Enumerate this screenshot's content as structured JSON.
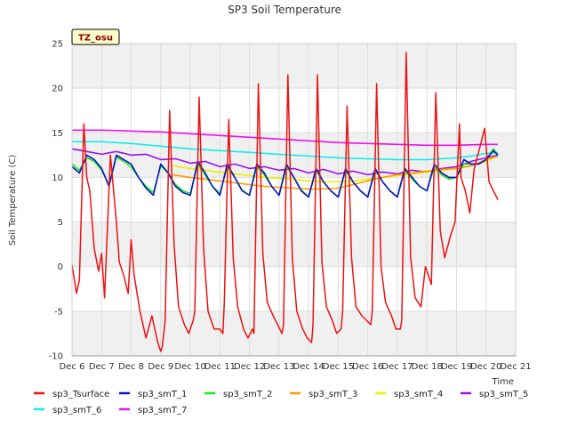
{
  "chart_data": {
    "type": "line",
    "title": "SP3 Soil Temperature",
    "xlabel": "Time",
    "ylabel": "Soil Temperature (C)",
    "site_badge": "TZ_osu",
    "ylim": [
      -10,
      25
    ],
    "xlim": [
      6,
      21
    ],
    "y_ticks": [
      "-10",
      "-5",
      "0",
      "5",
      "10",
      "15",
      "20",
      "25"
    ],
    "x_ticks": [
      {
        "label": "Dec 6",
        "x": 6
      },
      {
        "label": "Dec 7",
        "x": 7
      },
      {
        "label": "Dec 8",
        "x": 8
      },
      {
        "label": "Dec 9",
        "x": 9
      },
      {
        "label": "Dec 10",
        "x": 10
      },
      {
        "label": "Dec 11",
        "x": 11
      },
      {
        "label": "Dec 12",
        "x": 12
      },
      {
        "label": "Dec 13",
        "x": 13
      },
      {
        "label": "Dec 14",
        "x": 14
      },
      {
        "label": "Dec 15",
        "x": 15
      },
      {
        "label": "Dec 16",
        "x": 16
      },
      {
        "label": "Dec 17",
        "x": 17
      },
      {
        "label": "Dec 18",
        "x": 18
      },
      {
        "label": "Dec 19",
        "x": 19
      },
      {
        "label": "Dec 20",
        "x": 20
      },
      {
        "label": "Dec 21",
        "x": 21
      }
    ],
    "grid": true,
    "legend_position": "bottom",
    "series": [
      {
        "name": "sp3_Tsurface",
        "color": "#ee1111",
        "x": [
          6.0,
          6.15,
          6.25,
          6.4,
          6.5,
          6.6,
          6.75,
          6.9,
          7.0,
          7.1,
          7.3,
          7.5,
          7.6,
          7.75,
          7.9,
          8.0,
          8.1,
          8.3,
          8.5,
          8.7,
          8.9,
          9.0,
          9.05,
          9.15,
          9.3,
          9.45,
          9.6,
          9.8,
          9.95,
          10.1,
          10.15,
          10.3,
          10.45,
          10.6,
          10.8,
          11.0,
          11.1,
          11.15,
          11.3,
          11.45,
          11.6,
          11.8,
          11.95,
          12.1,
          12.15,
          12.3,
          12.45,
          12.6,
          12.8,
          12.95,
          13.1,
          13.15,
          13.3,
          13.45,
          13.6,
          13.8,
          13.95,
          14.1,
          14.15,
          14.3,
          14.45,
          14.6,
          14.8,
          14.95,
          15.1,
          15.15,
          15.3,
          15.45,
          15.6,
          15.8,
          15.95,
          16.1,
          16.15,
          16.3,
          16.45,
          16.6,
          16.8,
          16.95,
          17.1,
          17.15,
          17.3,
          17.45,
          17.6,
          17.8,
          17.95,
          18.1,
          18.15,
          18.3,
          18.45,
          18.6,
          18.8,
          18.95,
          19.1,
          19.15,
          19.3,
          19.45,
          19.6,
          19.8,
          19.95,
          20.1,
          20.25,
          20.4
        ],
        "y": [
          0.2,
          -3.0,
          -1.5,
          16.0,
          10.0,
          8.5,
          2.0,
          -0.5,
          1.5,
          -3.5,
          12.5,
          5.0,
          0.5,
          -1.0,
          -3.0,
          3.0,
          -1.0,
          -5.0,
          -8.0,
          -5.5,
          -8.5,
          -9.5,
          -9.0,
          -6.0,
          17.5,
          2.5,
          -4.5,
          -6.5,
          -7.5,
          -6.0,
          -5.0,
          19.0,
          2.0,
          -5.0,
          -7.0,
          -7.0,
          -7.5,
          -4.0,
          16.5,
          1.0,
          -4.5,
          -7.0,
          -8.0,
          -7.0,
          -7.5,
          20.5,
          1.5,
          -4.0,
          -5.5,
          -6.5,
          -7.5,
          -6.5,
          21.5,
          1.0,
          -5.0,
          -7.0,
          -8.0,
          -8.5,
          -6.5,
          21.5,
          0.5,
          -4.5,
          -6.0,
          -7.5,
          -7.0,
          -5.0,
          18.0,
          1.0,
          -4.5,
          -5.5,
          -6.0,
          -6.5,
          -5.0,
          20.5,
          0.0,
          -4.0,
          -5.5,
          -7.0,
          -7.0,
          -6.0,
          24.0,
          1.0,
          -3.5,
          -4.5,
          0.0,
          -1.5,
          -2.0,
          19.5,
          4.0,
          1.0,
          3.5,
          5.0,
          16.0,
          10.0,
          8.5,
          6.0,
          11.0,
          13.5,
          15.5,
          9.5,
          8.5,
          7.5
        ]
      },
      {
        "name": "sp3_smT_1",
        "color": "#1111cc",
        "x": [
          6.0,
          6.25,
          6.5,
          6.75,
          7.0,
          7.25,
          7.5,
          7.75,
          8.0,
          8.25,
          8.5,
          8.75,
          9.0,
          9.25,
          9.5,
          9.75,
          10.0,
          10.25,
          10.5,
          10.75,
          11.0,
          11.25,
          11.5,
          11.75,
          12.0,
          12.25,
          12.5,
          12.75,
          13.0,
          13.25,
          13.5,
          13.75,
          14.0,
          14.25,
          14.5,
          14.75,
          15.0,
          15.25,
          15.5,
          15.75,
          16.0,
          16.25,
          16.5,
          16.75,
          17.0,
          17.25,
          17.5,
          17.75,
          18.0,
          18.25,
          18.5,
          18.75,
          19.0,
          19.25,
          19.5,
          19.75,
          20.0,
          20.25,
          20.4
        ],
        "y": [
          11.2,
          10.5,
          12.5,
          12.0,
          11.0,
          9.0,
          12.5,
          12.0,
          11.5,
          10.0,
          8.8,
          8.0,
          11.5,
          10.5,
          9.0,
          8.3,
          8.0,
          11.8,
          10.5,
          9.0,
          8.0,
          11.5,
          10.0,
          8.5,
          8.0,
          11.5,
          10.5,
          9.0,
          8.0,
          11.5,
          10.0,
          8.5,
          7.8,
          11.0,
          9.5,
          8.5,
          7.8,
          11.0,
          9.5,
          8.5,
          7.8,
          11.0,
          9.5,
          8.5,
          7.8,
          11.0,
          10.0,
          9.0,
          8.5,
          11.5,
          10.5,
          10.0,
          10.0,
          12.0,
          11.5,
          11.5,
          12.0,
          13.0,
          12.5
        ]
      },
      {
        "name": "sp3_smT_2",
        "color": "#11ee11",
        "x": [
          6.0,
          6.25,
          6.5,
          6.75,
          7.0,
          7.25,
          7.5,
          7.75,
          8.0,
          8.25,
          8.5,
          8.75,
          9.0,
          9.25,
          9.5,
          9.75,
          10.0,
          10.25,
          10.5,
          10.75,
          11.0,
          11.25,
          11.5,
          11.75,
          12.0,
          12.25,
          12.5,
          12.75,
          13.0,
          13.25,
          13.5,
          13.75,
          14.0,
          14.25,
          14.5,
          14.75,
          15.0,
          15.25,
          15.5,
          15.75,
          16.0,
          16.25,
          16.5,
          16.75,
          17.0,
          17.25,
          17.5,
          17.75,
          18.0,
          18.25,
          18.5,
          18.75,
          19.0,
          19.25,
          19.5,
          19.75,
          20.0,
          20.25,
          20.4
        ],
        "y": [
          11.5,
          10.8,
          12.2,
          11.8,
          10.8,
          9.2,
          12.3,
          11.8,
          11.2,
          10.0,
          9.0,
          8.3,
          11.3,
          10.5,
          9.2,
          8.5,
          8.2,
          11.5,
          10.3,
          9.0,
          8.2,
          11.2,
          10.0,
          8.6,
          8.0,
          11.2,
          10.3,
          9.0,
          8.0,
          11.2,
          10.0,
          8.6,
          7.8,
          10.8,
          9.5,
          8.5,
          7.8,
          10.8,
          9.5,
          8.5,
          7.8,
          10.8,
          9.5,
          8.5,
          7.8,
          10.8,
          9.8,
          9.0,
          8.5,
          11.2,
          10.3,
          9.8,
          10.0,
          11.5,
          11.5,
          11.5,
          12.0,
          13.2,
          12.5
        ]
      },
      {
        "name": "sp3_smT_3",
        "color": "#ff9900",
        "x": [
          9.4,
          10.0,
          10.5,
          11.0,
          11.5,
          12.0,
          12.5,
          13.0,
          13.5,
          14.0,
          14.5,
          15.0,
          15.5,
          16.0,
          16.5,
          17.0,
          17.5,
          18.0,
          18.5,
          19.0,
          19.5,
          20.0,
          20.4
        ],
        "y": [
          10.3,
          10.0,
          9.8,
          9.6,
          9.4,
          9.2,
          9.0,
          8.9,
          8.8,
          8.7,
          8.7,
          8.8,
          9.2,
          9.6,
          10.0,
          10.3,
          10.5,
          10.7,
          10.9,
          11.0,
          11.3,
          12.0,
          12.4
        ]
      },
      {
        "name": "sp3_smT_4",
        "color": "#eeee00",
        "x": [
          9.4,
          10.0,
          10.5,
          11.0,
          11.5,
          12.0,
          12.5,
          13.0,
          13.5,
          14.0,
          14.5,
          15.0,
          15.5,
          16.0,
          16.5,
          17.0,
          17.5,
          18.0,
          18.5,
          19.0,
          19.5,
          20.0,
          20.4
        ],
        "y": [
          11.3,
          11.0,
          10.8,
          10.6,
          10.4,
          10.2,
          10.0,
          9.9,
          9.8,
          9.6,
          9.5,
          9.5,
          9.6,
          9.8,
          10.0,
          10.2,
          10.4,
          10.6,
          10.8,
          11.0,
          11.3,
          11.8,
          12.4
        ]
      },
      {
        "name": "sp3_smT_5",
        "color": "#9911ee",
        "x": [
          6.0,
          6.5,
          7.0,
          7.5,
          8.0,
          8.5,
          9.0,
          9.5,
          10.0,
          10.5,
          11.0,
          11.5,
          12.0,
          12.5,
          13.0,
          13.5,
          14.0,
          14.5,
          15.0,
          15.5,
          16.0,
          16.5,
          17.0,
          17.5,
          18.0,
          18.5,
          19.0,
          19.5,
          20.0,
          20.4
        ],
        "y": [
          13.2,
          12.9,
          12.6,
          12.9,
          12.5,
          12.6,
          12.0,
          12.1,
          11.6,
          11.8,
          11.2,
          11.5,
          11.0,
          11.2,
          10.8,
          11.0,
          10.5,
          10.9,
          10.4,
          10.7,
          10.3,
          10.6,
          10.4,
          10.8,
          10.6,
          11.0,
          11.2,
          11.8,
          12.2,
          12.5
        ]
      },
      {
        "name": "sp3_smT_6",
        "color": "#11eeee",
        "x": [
          6.0,
          7.0,
          8.0,
          9.0,
          10.0,
          11.0,
          12.0,
          13.0,
          14.0,
          15.0,
          16.0,
          17.0,
          18.0,
          19.0,
          19.5,
          20.0,
          20.4
        ],
        "y": [
          14.0,
          14.0,
          13.8,
          13.5,
          13.2,
          13.0,
          12.8,
          12.6,
          12.4,
          12.2,
          12.1,
          12.0,
          12.0,
          12.2,
          12.4,
          12.7,
          12.8
        ]
      },
      {
        "name": "sp3_smT_7",
        "color": "#ee11ee",
        "x": [
          6.0,
          7.0,
          8.0,
          9.0,
          10.0,
          11.0,
          12.0,
          13.0,
          14.0,
          15.0,
          16.0,
          17.0,
          18.0,
          19.0,
          20.0,
          20.4
        ],
        "y": [
          15.3,
          15.3,
          15.2,
          15.1,
          14.9,
          14.7,
          14.5,
          14.3,
          14.1,
          13.9,
          13.8,
          13.7,
          13.6,
          13.6,
          13.7,
          13.7
        ]
      }
    ]
  }
}
